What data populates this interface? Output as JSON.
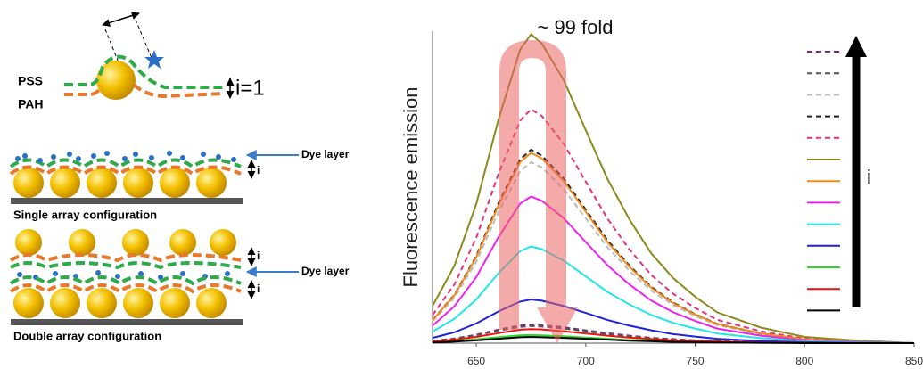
{
  "schematic": {
    "pss": "PSS",
    "pah": "PAH",
    "i_top": "i=1",
    "dye_single": "Dye layer",
    "i_single": "i",
    "single_caption": "Single array configuration",
    "i_double_top": "i",
    "dye_double": "Dye layer",
    "i_double_bottom": "i",
    "double_caption": "Double array configuration"
  },
  "chart_data": {
    "type": "line",
    "ylabel": "Fluorescence emission",
    "annotation": "~ 99 fold",
    "legend_label": "i",
    "x": [
      630,
      640,
      650,
      660,
      670,
      675,
      680,
      690,
      700,
      710,
      720,
      730,
      740,
      750,
      760,
      780,
      800,
      820,
      850
    ],
    "xlim": [
      630,
      850
    ],
    "xticks": [
      650,
      700,
      750,
      800,
      850
    ],
    "ylim": [
      0,
      100
    ],
    "series": [
      {
        "color": "#7b2a7b",
        "dashed": true,
        "values": [
          0.7,
          1.5,
          2.7,
          4.3,
          5.7,
          6,
          5.8,
          5.1,
          4.1,
          3.2,
          2.4,
          1.7,
          1.3,
          0.9,
          0.6,
          0.3,
          0.1,
          0.1,
          0
        ]
      },
      {
        "color": "#555555",
        "dashed": true,
        "values": [
          0.7,
          1.4,
          2.5,
          4,
          5.2,
          5.5,
          5.3,
          4.7,
          3.8,
          2.9,
          2.2,
          1.6,
          1.2,
          0.8,
          0.6,
          0.3,
          0.1,
          0.1,
          0
        ]
      },
      {
        "color": "#bbbbbb",
        "dashed": true,
        "values": [
          7,
          14.5,
          26.1,
          41.8,
          55.1,
          58,
          56.3,
          49.3,
          40,
          30.7,
          23.2,
          16.8,
          12.2,
          8.7,
          5.8,
          2.9,
          1.2,
          0.6,
          0
        ]
      },
      {
        "color": "#222222",
        "dashed": true,
        "values": [
          7.4,
          15.5,
          27.9,
          44.6,
          58.9,
          62,
          60.1,
          52.7,
          42.8,
          32.9,
          24.8,
          18,
          13,
          9.3,
          6.2,
          3.1,
          1.2,
          0.6,
          0
        ]
      },
      {
        "color": "#e6307a",
        "dashed": true,
        "values": [
          9,
          18.8,
          33.8,
          54,
          71.3,
          75,
          72.8,
          63.8,
          51.8,
          39.8,
          30,
          21.8,
          15.8,
          11.3,
          7.5,
          3.8,
          1.5,
          0.8,
          0
        ]
      },
      {
        "color": "#8a8a1e",
        "dashed": false,
        "values": [
          11.9,
          24.8,
          44.6,
          71.3,
          94.1,
          99,
          96,
          84.2,
          68.3,
          52.5,
          39.6,
          28.7,
          20.8,
          14.9,
          9.9,
          5,
          2,
          1,
          0
        ]
      },
      {
        "color": "#f08a1c",
        "dashed": false,
        "values": [
          7.3,
          15.3,
          27.5,
          43.9,
          58,
          61,
          59.2,
          51.9,
          42.1,
          32.3,
          24.4,
          17.7,
          12.8,
          9.2,
          6.1,
          3.1,
          1.2,
          0.6,
          0
        ]
      },
      {
        "color": "#ee22ee",
        "dashed": false,
        "values": [
          5.6,
          11.8,
          21.2,
          33.8,
          44.7,
          47,
          45.6,
          40,
          32.4,
          24.9,
          18.8,
          13.6,
          9.9,
          7.1,
          4.7,
          2.4,
          0.9,
          0.5,
          0
        ]
      },
      {
        "color": "#22e6e6",
        "dashed": false,
        "values": [
          3.7,
          7.8,
          14,
          22.3,
          29.5,
          31,
          30.1,
          26.4,
          21.4,
          16.4,
          12.4,
          9,
          6.5,
          4.7,
          3.1,
          1.6,
          0.6,
          0.3,
          0
        ]
      },
      {
        "color": "#2222dd",
        "dashed": false,
        "values": [
          1.7,
          3.5,
          6.3,
          10.1,
          13.3,
          14,
          13.6,
          11.9,
          9.7,
          7.4,
          5.6,
          4.1,
          2.9,
          2.1,
          1.4,
          0.7,
          0.3,
          0.1,
          0
        ]
      },
      {
        "color": "#22dd22",
        "dashed": false,
        "values": [
          0.3,
          0.7,
          1.2,
          1.9,
          2.5,
          2.6,
          2.5,
          2.2,
          1.8,
          1.4,
          1,
          0.8,
          0.5,
          0.4,
          0.3,
          0.1,
          0.1,
          0,
          0
        ]
      },
      {
        "color": "#ee1111",
        "dashed": false,
        "values": [
          0.5,
          1.1,
          2,
          3.2,
          4.3,
          4.5,
          4.4,
          3.8,
          3.1,
          2.4,
          1.8,
          1.3,
          0.9,
          0.7,
          0.5,
          0.2,
          0.1,
          0,
          0
        ]
      },
      {
        "color": "#000000",
        "dashed": false,
        "values": [
          0.2,
          0.5,
          0.9,
          1.4,
          1.9,
          2,
          1.9,
          1.7,
          1.4,
          1.1,
          0.8,
          0.6,
          0.4,
          0.3,
          0.2,
          0.1,
          0,
          0,
          0
        ]
      }
    ]
  }
}
